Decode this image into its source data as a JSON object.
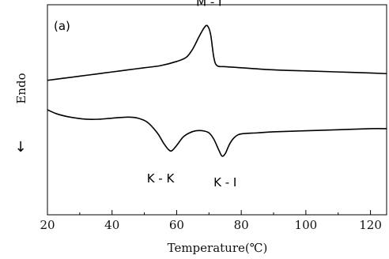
{
  "chart_data": {
    "type": "line",
    "panel_label": "(a)",
    "xlabel": "Temperature(℃)",
    "ylabel": "Endo",
    "ylabel_arrow": "↓",
    "xlim": [
      20,
      125
    ],
    "xticks": [
      20,
      40,
      60,
      80,
      100,
      120
    ],
    "y_ticks_shown": false,
    "grid": false,
    "series": [
      {
        "points": [
          [
            20,
            0.64
          ],
          [
            25,
            0.65
          ],
          [
            30,
            0.66
          ],
          [
            35,
            0.67
          ],
          [
            40,
            0.68
          ],
          [
            45,
            0.69
          ],
          [
            50,
            0.7
          ],
          [
            55,
            0.71
          ],
          [
            60,
            0.73
          ],
          [
            63,
            0.75
          ],
          [
            65,
            0.79
          ],
          [
            67,
            0.85
          ],
          [
            68.5,
            0.89
          ],
          [
            69.5,
            0.9
          ],
          [
            70.5,
            0.86
          ],
          [
            71.5,
            0.75
          ],
          [
            72.5,
            0.71
          ],
          [
            75,
            0.705
          ],
          [
            80,
            0.7
          ],
          [
            90,
            0.69
          ],
          [
            100,
            0.685
          ],
          [
            110,
            0.68
          ],
          [
            120,
            0.675
          ],
          [
            125,
            0.672
          ]
        ]
      },
      {
        "points": [
          [
            20,
            0.5
          ],
          [
            23,
            0.48
          ],
          [
            27,
            0.465
          ],
          [
            32,
            0.455
          ],
          [
            36,
            0.455
          ],
          [
            40,
            0.46
          ],
          [
            45,
            0.465
          ],
          [
            48,
            0.46
          ],
          [
            51,
            0.44
          ],
          [
            54,
            0.39
          ],
          [
            56,
            0.34
          ],
          [
            57.5,
            0.31
          ],
          [
            58.5,
            0.305
          ],
          [
            60,
            0.33
          ],
          [
            62,
            0.37
          ],
          [
            64,
            0.39
          ],
          [
            66,
            0.4
          ],
          [
            68,
            0.4
          ],
          [
            70,
            0.39
          ],
          [
            71.5,
            0.36
          ],
          [
            73,
            0.31
          ],
          [
            74,
            0.28
          ],
          [
            75,
            0.29
          ],
          [
            76.5,
            0.34
          ],
          [
            78,
            0.37
          ],
          [
            80,
            0.385
          ],
          [
            85,
            0.39
          ],
          [
            90,
            0.395
          ],
          [
            100,
            0.4
          ],
          [
            110,
            0.405
          ],
          [
            120,
            0.41
          ],
          [
            125,
            0.41
          ]
        ]
      }
    ],
    "annotations": [
      {
        "text": "M - I",
        "x": 70,
        "y": 0.995
      },
      {
        "text": "K - K",
        "x": 55,
        "y": 0.155
      },
      {
        "text": "K - I",
        "x": 75,
        "y": 0.135
      }
    ]
  }
}
